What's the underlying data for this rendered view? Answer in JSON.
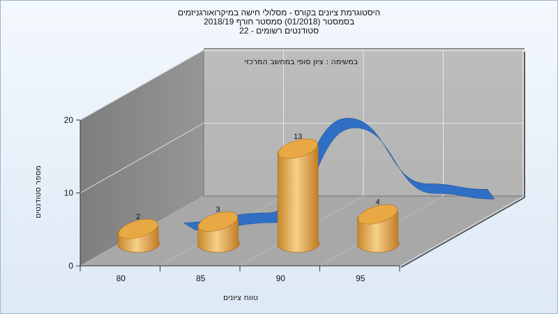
{
  "chart_data": {
    "type": "bar",
    "title_lines": [
      "היסטוגרמת ציונים בקורס - מסלולי חישה במיקרואורגניזמים",
      "בסמסטר  (01/2018)  סמסטר חורף 2018/19",
      "סטודנטים רשומים - 22"
    ],
    "subtitle": "במשימה : ציון סופי במחשב המרכזי",
    "xlabel": "טווח ציונים",
    "ylabel": "מספר סטודנטים",
    "categories": [
      "80",
      "85",
      "90",
      "95"
    ],
    "values": [
      2,
      3,
      13,
      4
    ],
    "line_series": [
      1,
      2,
      15,
      6
    ],
    "ylim": [
      0,
      20
    ],
    "yticks": [
      0,
      10,
      20
    ],
    "colors": {
      "bar": "#e0a23c",
      "line": "#2f6fc4",
      "back_wall": "#b9b9b9",
      "side_wall": "#8a8a8a",
      "floor": "#a9a9a9"
    }
  }
}
